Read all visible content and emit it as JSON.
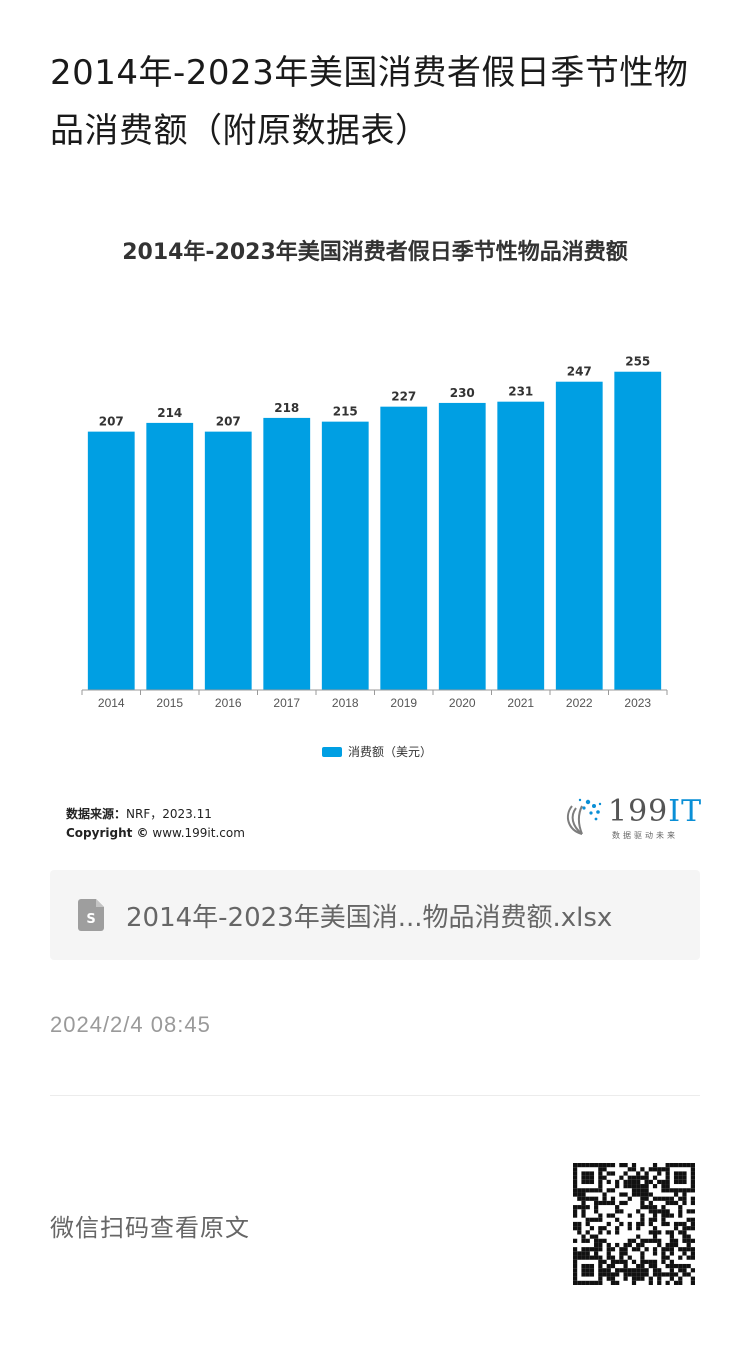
{
  "article": {
    "title": "2014年-2023年美国消费者假日季节性物品消费额（附原数据表）"
  },
  "chart_data": {
    "type": "bar",
    "title": "2014年-2023年美国消费者假日季节性物品消费额",
    "categories": [
      "2014",
      "2015",
      "2016",
      "2017",
      "2018",
      "2019",
      "2020",
      "2021",
      "2022",
      "2023"
    ],
    "series": [
      {
        "name": "消费额（美元）",
        "values": [
          207,
          214,
          207,
          218,
          215,
          227,
          230,
          231,
          247,
          255
        ],
        "color": "#009fe3"
      }
    ],
    "ylim": [
      0,
      270
    ],
    "grid": false,
    "legend_position": "bottom-center"
  },
  "source": {
    "label": "数据来源：",
    "value": "NRF，2023.11",
    "copyright_label": "Copyright ©",
    "copyright_value": "www.199it.com"
  },
  "logo": {
    "brand": "199",
    "brand_suffix": "IT",
    "tagline": "数据驱动未来",
    "accent": "#0a8fd6"
  },
  "file": {
    "icon": "spreadsheet-file-icon",
    "name": "2014年-2023年美国消...物品消费额.xlsx"
  },
  "timestamp": "2024/2/4 08:45",
  "wechat_hint": "微信扫码查看原文"
}
